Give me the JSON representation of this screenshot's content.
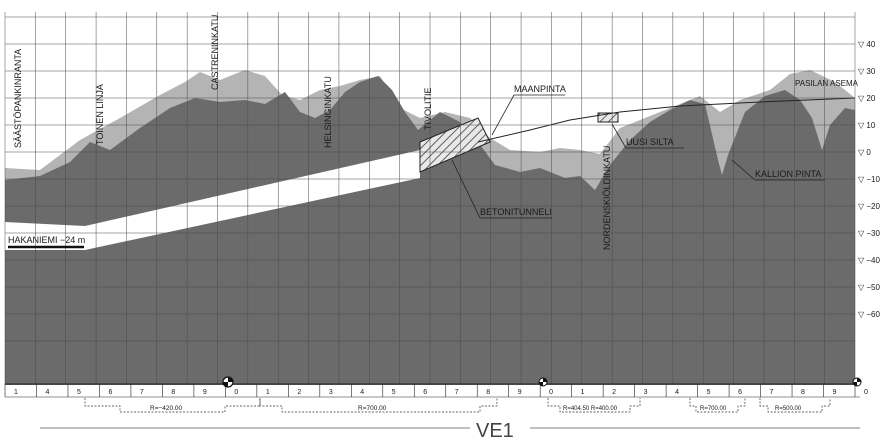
{
  "streets": [
    {
      "id": "saastopankinranta",
      "text": "SÄÄSTÖPANKINRANTA"
    },
    {
      "id": "toinen-linja",
      "text": "TOINEN LINJA"
    },
    {
      "id": "castreninkatu",
      "text": "CASTRENINKATU"
    },
    {
      "id": "helsinginkatu",
      "text": "HELSINGINKATU"
    },
    {
      "id": "tivolitie",
      "text": "TIVOLITIE"
    },
    {
      "id": "nordenskioldinkatu",
      "text": "NORDENSKIÖLDINKATU"
    }
  ],
  "annotations": {
    "maanpinta": "MAANPINTA",
    "uusi_silta": "UUSI SILTA",
    "kallion_pinta": "KALLION PINTA",
    "betonitunneli": "BETONITUNNELI",
    "pasilan_asema": "PASILAN ASEMA",
    "hakaniemi": "HAKANIEMI −24 m"
  },
  "elevation_scale": [
    "▽ 40",
    "▽ 30",
    "▽ 20",
    "▽ 10",
    "▽ 0",
    "▽ −10",
    "▽ −20",
    "▽ −30",
    "▽ −40",
    "▽ −50",
    "▽ −60"
  ],
  "chainage_ticks": [
    "1",
    "4",
    "5",
    "6",
    "7",
    "8",
    "9",
    "0",
    "1",
    "2",
    "3",
    "4",
    "5",
    "6",
    "7",
    "8",
    "9",
    "0",
    "1",
    "2",
    "3",
    "4",
    "5",
    "6",
    "7",
    "8",
    "9",
    "0"
  ],
  "curves": [
    {
      "id": "curve-1",
      "text": "R=−420.00"
    },
    {
      "id": "curve-2",
      "text": "R=700.00"
    },
    {
      "id": "curve-3",
      "text": "R=404.50 R=400.00"
    },
    {
      "id": "curve-4",
      "text": "R=700.00"
    },
    {
      "id": "curve-5",
      "text": "R=500.00"
    }
  ],
  "alignment_label": "VE1",
  "colors": {
    "rock": "#6b6b6b",
    "ground": "#b4b4b4",
    "grid": "#4a4a4a",
    "tunnel": "#ffffff"
  }
}
